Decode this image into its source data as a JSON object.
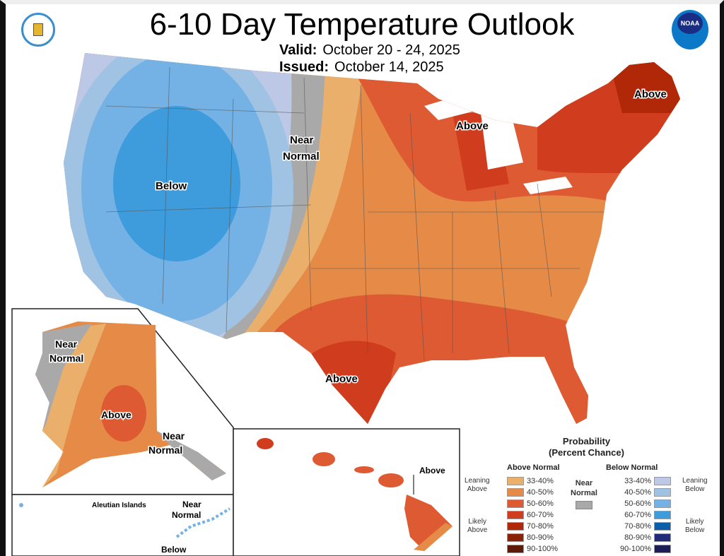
{
  "header": {
    "title": "6-10 Day Temperature Outlook",
    "valid_label": "Valid:",
    "valid_value": "October 20 - 24, 2025",
    "issued_label": "Issued:",
    "issued_value": "October 14, 2025",
    "noaa_logo_text": "NOAA"
  },
  "map_labels": {
    "below": "Below",
    "near_normal_line1": "Near",
    "near_normal_line2": "Normal",
    "above_maine": "Above",
    "above_michigan": "Above",
    "above_texas": "Above"
  },
  "alaska": {
    "near1_a": "Near",
    "near1_b": "Normal",
    "above": "Above",
    "near2_a": "Near",
    "near2_b": "Normal"
  },
  "aleutian": {
    "title": "Aleutian Islands",
    "near_a": "Near",
    "near_b": "Normal",
    "below": "Below"
  },
  "hawaii": {
    "above": "Above"
  },
  "legend": {
    "title1": "Probability",
    "title2": "(Percent Chance)",
    "above_header": "Above Normal",
    "below_header": "Below Normal",
    "near_a": "Near",
    "near_b": "Normal",
    "leaning_above_a": "Leaning",
    "leaning_above_b": "Above",
    "likely_above_a": "Likely",
    "likely_above_b": "Above",
    "leaning_below_a": "Leaning",
    "leaning_below_b": "Below",
    "likely_below_a": "Likely",
    "likely_below_b": "Below",
    "above": [
      {
        "range": "33-40%",
        "color": "#eab06b"
      },
      {
        "range": "40-50%",
        "color": "#e58a47"
      },
      {
        "range": "50-60%",
        "color": "#dd5a32"
      },
      {
        "range": "60-70%",
        "color": "#d03d1e"
      },
      {
        "range": "70-80%",
        "color": "#b02808"
      },
      {
        "range": "80-90%",
        "color": "#8a2208"
      },
      {
        "range": "90-100%",
        "color": "#5e1a08"
      }
    ],
    "below": [
      {
        "range": "33-40%",
        "color": "#bcc8e6"
      },
      {
        "range": "40-50%",
        "color": "#a0c2e3"
      },
      {
        "range": "50-60%",
        "color": "#74b2e6"
      },
      {
        "range": "60-70%",
        "color": "#3e9bdc"
      },
      {
        "range": "70-80%",
        "color": "#0d5ea8"
      },
      {
        "range": "80-90%",
        "color": "#232a78"
      },
      {
        "range": "90-100%",
        "color": "#1e1d55"
      }
    ],
    "near_color": "#a9a9a9"
  }
}
